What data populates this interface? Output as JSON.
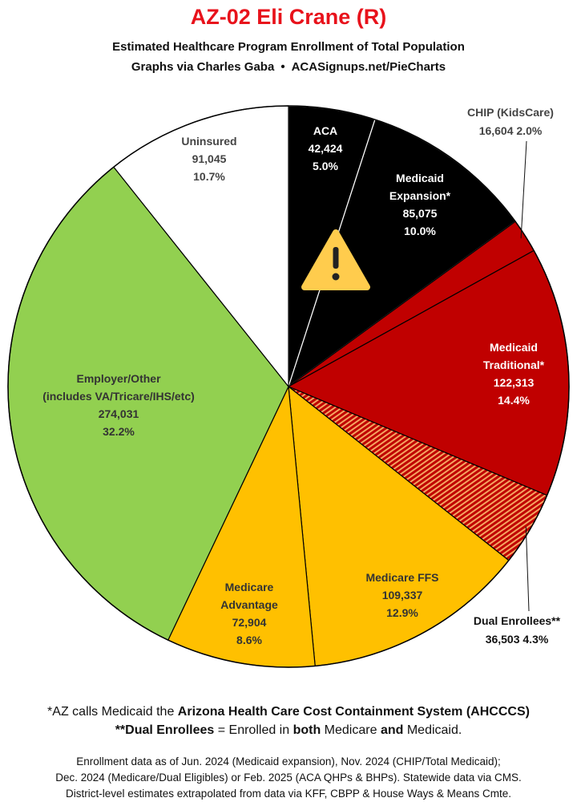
{
  "header": {
    "title": "AZ-02 Eli Crane (R)",
    "subtitle": "Estimated Healthcare Program Enrollment of Total Population",
    "credit_left": "Graphs via Charles Gaba",
    "credit_bullet": "•",
    "credit_right": "ACASignups.net/PieCharts"
  },
  "chart_data": {
    "type": "pie",
    "title": "AZ-02 Eli Crane (R)",
    "subtitle": "Estimated Healthcare Program Enrollment of Total Population",
    "start_angle": "12 o'clock",
    "direction": "clockwise",
    "slices": [
      {
        "label": "ACA",
        "value": 42424,
        "percent": 5.0,
        "color": "#000000",
        "text_color": "#ffffff"
      },
      {
        "label": "Medicaid Expansion*",
        "value": 85075,
        "percent": 10.0,
        "color": "#000000",
        "text_color": "#ffffff"
      },
      {
        "label": "CHIP (KidsCare)",
        "value": 16604,
        "percent": 2.0,
        "color": "#c00000",
        "text_color": "#333333",
        "external_label": true
      },
      {
        "label": "Medicaid Traditional*",
        "value": 122313,
        "percent": 14.4,
        "color": "#c00000",
        "text_color": "#ffffff"
      },
      {
        "label": "Dual Enrollees**",
        "value": 36503,
        "percent": 4.3,
        "color": "#c00000",
        "pattern": "red/orange stripes",
        "text_color": "#111111",
        "external_label": true
      },
      {
        "label": "Medicare FFS",
        "value": 109337,
        "percent": 12.9,
        "color": "#ffc000",
        "text_color": "#333333"
      },
      {
        "label": "Medicare Advantage",
        "value": 72904,
        "percent": 8.6,
        "color": "#ffc000",
        "text_color": "#333333"
      },
      {
        "label": "Employer/Other (includes VA/Tricare/IHS/etc)",
        "value": 274031,
        "percent": 32.2,
        "color": "#92d050",
        "text_color": "#333333"
      },
      {
        "label": "Uninsured",
        "value": 91045,
        "percent": 10.7,
        "color": "#ffffff",
        "text_color": "#444444"
      }
    ],
    "annotations": [
      "warning-triangle-icon over ACA / Medicaid Expansion slices"
    ]
  },
  "labels": {
    "aca": {
      "l1": "ACA",
      "l2": "42,424",
      "l3": "5.0%"
    },
    "expansion": {
      "l1": "Medicaid",
      "l2": "Expansion*",
      "l3": "85,075",
      "l4": "10.0%"
    },
    "chip": {
      "l1": "CHIP (KidsCare)",
      "l2": "16,604 2.0%"
    },
    "traditional": {
      "l1": "Medicaid",
      "l2": "Traditional*",
      "l3": "122,313",
      "l4": "14.4%"
    },
    "dual": {
      "l1": "Dual Enrollees**",
      "l2": "36,503 4.3%"
    },
    "ffs": {
      "l1": "Medicare FFS",
      "l2": "109,337",
      "l3": "12.9%"
    },
    "advantage": {
      "l1": "Medicare",
      "l2": "Advantage",
      "l3": "72,904",
      "l4": "8.6%"
    },
    "employer": {
      "l1": "Employer/Other",
      "l2": "(includes VA/Tricare/IHS/etc)",
      "l3": "274,031",
      "l4": "32.2%"
    },
    "uninsured": {
      "l1": "Uninsured",
      "l2": "91,045",
      "l3": "10.7%"
    }
  },
  "notes": {
    "n1_a": "*AZ calls Medicaid the ",
    "n1_b": "Arizona Health Care Cost Containment System (AHCCCS)",
    "n2_a": "**Dual Enrollees",
    "n2_b": " = Enrolled in ",
    "n2_c": "both",
    "n2_d": " Medicare ",
    "n2_e": "and",
    "n2_f": " Medicaid."
  },
  "sources": {
    "s1": "Enrollment data as of Jun. 2024 (Medicaid expansion), Nov. 2024 (CHIP/Total Medicaid);",
    "s2": "Dec. 2024 (Medicare/Dual Eligibles) or Feb. 2025 (ACA QHPs & BHPs). Statewide data via CMS.",
    "s3": "District-level estimates extrapolated from data via KFF, CBPP & House Ways & Means Cmte."
  },
  "colors": {
    "title_red": "#e8121b",
    "black": "#000000",
    "medicaid_red": "#c00000",
    "medicare_gold": "#ffc000",
    "employer_green": "#92d050",
    "uninsured_white": "#ffffff",
    "warning_yellow": "#ffcc4d"
  }
}
